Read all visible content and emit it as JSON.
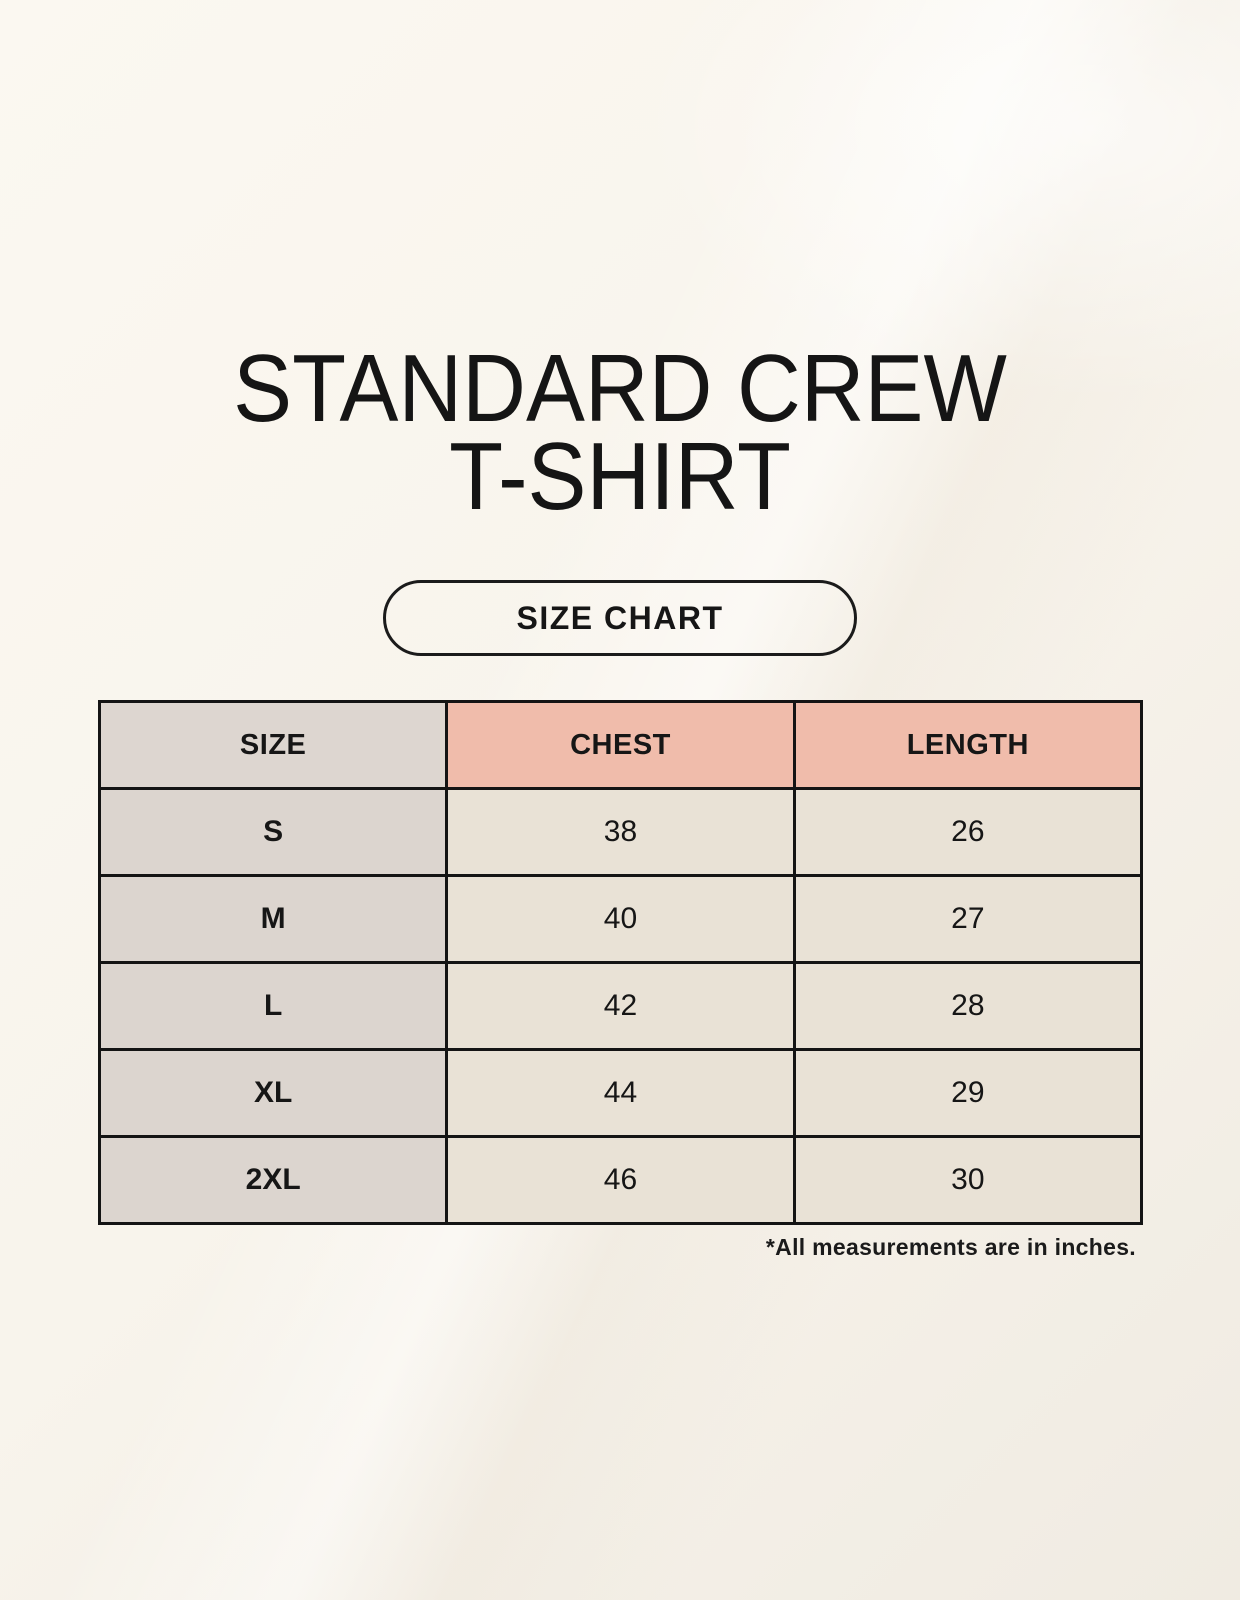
{
  "page": {
    "title_line1": "STANDARD CREW",
    "title_line2": "T-SHIRT",
    "button_label": "SIZE CHART",
    "footnote": "*All measurements are in inches."
  },
  "colors": {
    "background_cream": "#f8f4ec",
    "header_pink": "#f0bcab",
    "size_column_gray": "#ddd6d0",
    "cell_cream": "#e9e2d6",
    "border_black": "#141414",
    "text": "#161616"
  },
  "table": {
    "columns": [
      "SIZE",
      "CHEST",
      "LENGTH"
    ],
    "rows": [
      {
        "size": "S",
        "chest": "38",
        "length": "26"
      },
      {
        "size": "M",
        "chest": "40",
        "length": "27"
      },
      {
        "size": "L",
        "chest": "42",
        "length": "28"
      },
      {
        "size": "XL",
        "chest": "44",
        "length": "29"
      },
      {
        "size": "2XL",
        "chest": "46",
        "length": "30"
      }
    ]
  },
  "chart_data": {
    "type": "table",
    "title": "STANDARD CREW T-SHIRT",
    "subtitle": "SIZE CHART",
    "columns": [
      "SIZE",
      "CHEST",
      "LENGTH"
    ],
    "rows": [
      [
        "S",
        38,
        26
      ],
      [
        "M",
        40,
        27
      ],
      [
        "L",
        42,
        28
      ],
      [
        "XL",
        44,
        29
      ],
      [
        "2XL",
        46,
        30
      ]
    ],
    "units": "inches",
    "note": "*All measurements are in inches."
  }
}
